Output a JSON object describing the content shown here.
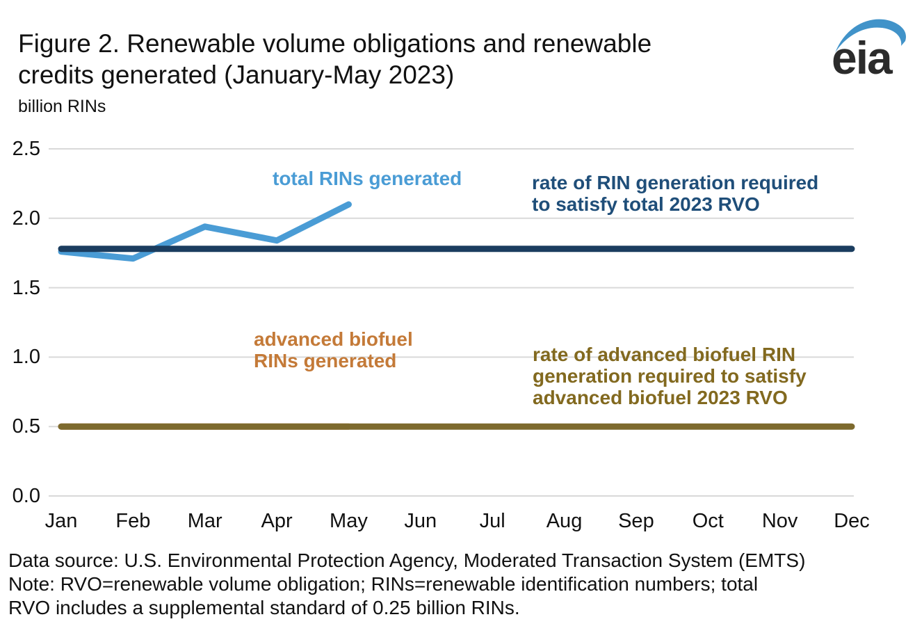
{
  "header": {
    "title_line1": "Figure 2. Renewable volume obligations and renewable",
    "title_line2": "credits generated (January-May 2023)",
    "units_label": "billion RINs",
    "logo_text": "eia"
  },
  "colors": {
    "total_rins_line": "#4a9cd5",
    "total_rvo_line": "#1b3d5f",
    "adv_rins_line": "#c47a38",
    "adv_rvo_line": "#7d6a2e",
    "gridline": "#d9d9d9",
    "total_rins_label": "#4a9cd5",
    "total_rvo_label": "#1f4e79",
    "adv_rins_label": "#c47a38",
    "adv_rvo_label": "#82691f"
  },
  "chart_data": {
    "type": "line",
    "title": "Figure 2. Renewable volume obligations and renewable credits generated (January-May 2023)",
    "ylabel": "billion RINs",
    "xlabel": "",
    "x": [
      "Jan",
      "Feb",
      "Mar",
      "Apr",
      "May",
      "Jun",
      "Jul",
      "Aug",
      "Sep",
      "Oct",
      "Nov",
      "Dec"
    ],
    "ylim": [
      0,
      2.5
    ],
    "yticks": [
      0,
      0.5,
      1,
      1.5,
      2,
      2.5
    ],
    "ytick_labels": [
      "0.0",
      "0.5",
      "1.0",
      "1.5",
      "2.0",
      "2.5"
    ],
    "grid": true,
    "legend_position": "inline-annotations",
    "series": [
      {
        "name": "advanced biofuel RINs generated",
        "color": "#c47a38",
        "values": [
          0.5,
          0.5,
          0.5,
          0.5,
          0.5
        ]
      },
      {
        "name": "rate of advanced biofuel RIN generation required to satisfy advanced biofuel 2023 RVO",
        "color": "#7d6a2e",
        "values": [
          0.5,
          0.5,
          0.5,
          0.5,
          0.5,
          0.5,
          0.5,
          0.5,
          0.5,
          0.5,
          0.5,
          0.5
        ]
      },
      {
        "name": "total RINs generated",
        "color": "#4a9cd5",
        "values": [
          1.76,
          1.71,
          1.94,
          1.84,
          2.1
        ]
      },
      {
        "name": "rate of RIN generation required to satisfy total 2023 RVO",
        "color": "#1b3d5f",
        "values": [
          1.78,
          1.78,
          1.78,
          1.78,
          1.78,
          1.78,
          1.78,
          1.78,
          1.78,
          1.78,
          1.78,
          1.78
        ]
      }
    ]
  },
  "annotations": {
    "total_rins": {
      "line1": "total RINs generated"
    },
    "total_rvo": {
      "line1": "rate of RIN generation required",
      "line2": "to satisfy total 2023 RVO"
    },
    "adv_rins": {
      "line1": "advanced biofuel",
      "line2": "RINs generated"
    },
    "adv_rvo": {
      "line1": "rate of advanced biofuel RIN",
      "line2": "generation required to satisfy",
      "line3": "advanced biofuel 2023 RVO"
    }
  },
  "footer": {
    "line1": "Data source: U.S. Environmental Protection Agency, Moderated Transaction System (EMTS)",
    "line2": "Note: RVO=renewable volume obligation; RINs=renewable identification numbers; total",
    "line3": "RVO includes a supplemental standard of 0.25 billion RINs."
  }
}
